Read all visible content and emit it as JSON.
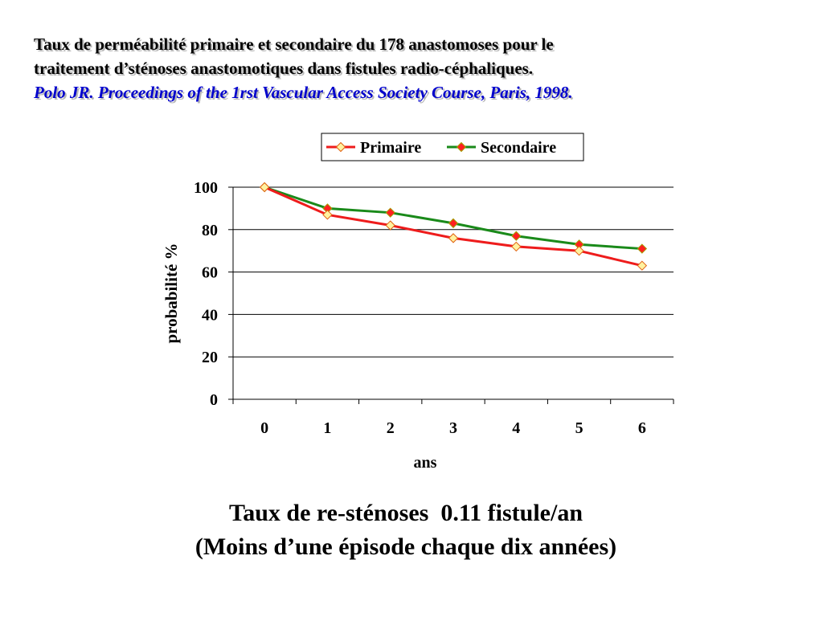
{
  "header": {
    "title_line1": "Taux de perméabilité primaire et secondaire du 178  anastomoses pour le",
    "title_line2": "traitement d’sténoses anastomotiques dans fistules radio-céphaliques.",
    "citation": "Polo JR. Proceedings of the 1rst Vascular Access Society Course, Paris, 1998."
  },
  "chart_data": {
    "type": "line",
    "x": [
      0,
      1,
      2,
      3,
      4,
      5,
      6
    ],
    "categories": [
      "0",
      "1",
      "2",
      "3",
      "4",
      "5",
      "6"
    ],
    "series": [
      {
        "name": "Primaire",
        "values": [
          100,
          87,
          82,
          76,
          72,
          70,
          63
        ],
        "color": "#ee1c1c",
        "marker_color": "#fff2a0"
      },
      {
        "name": "Secondaire",
        "values": [
          100,
          90,
          88,
          83,
          77,
          73,
          71
        ],
        "color": "#1a8a1a",
        "marker_color": "#ff2020"
      }
    ],
    "xlabel": "ans",
    "ylabel": "probabilité %",
    "ylim": [
      0,
      100
    ],
    "yticks": [
      0,
      20,
      40,
      60,
      80,
      100
    ],
    "grid": true,
    "legend_position": "top"
  },
  "footer": {
    "line1": "Taux de re-sténoses  0.11 fistule/an",
    "line2": "(Moins d’une épisode chaque dix années)"
  }
}
